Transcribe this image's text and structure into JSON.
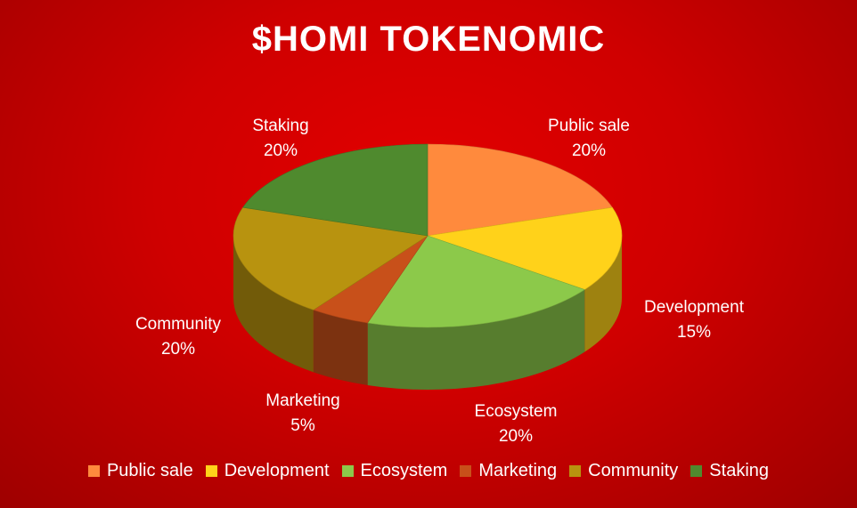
{
  "chart_data": {
    "type": "pie",
    "title": "$HOMI TOKENOMIC",
    "categories": [
      "Public sale",
      "Development",
      "Ecosystem",
      "Marketing",
      "Community",
      "Staking"
    ],
    "values": [
      20,
      15,
      20,
      5,
      20,
      20
    ],
    "value_labels": [
      "20%",
      "15%",
      "20%",
      "5%",
      "20%",
      "20%"
    ],
    "colors": [
      "#ff8a3d",
      "#ffd21a",
      "#8cc94a",
      "#c8501a",
      "#b8930f",
      "#4f8a2e"
    ],
    "legend": "bottom",
    "style": "3d"
  }
}
